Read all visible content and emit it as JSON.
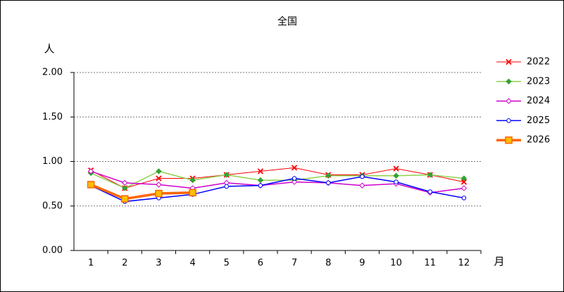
{
  "chart_data": {
    "type": "line",
    "title": "全国",
    "ylabel": "人",
    "xlabel": "月",
    "categories": [
      "1",
      "2",
      "3",
      "4",
      "5",
      "6",
      "7",
      "8",
      "9",
      "10",
      "11",
      "12"
    ],
    "ylim": [
      0,
      2
    ],
    "yticks": [
      {
        "value": 0,
        "label": "0.00"
      },
      {
        "value": 0.5,
        "label": "0.50"
      },
      {
        "value": 1,
        "label": "1.00"
      },
      {
        "value": 1.5,
        "label": "1.50"
      },
      {
        "value": 2,
        "label": "2.00"
      }
    ],
    "grid": true,
    "legend": "right",
    "series": [
      {
        "name": "2022",
        "color": "#ff0000",
        "marker": "x",
        "marker_fill": "#ff0000",
        "linewidth": 1,
        "values": [
          0.9,
          0.7,
          0.81,
          0.81,
          0.85,
          0.89,
          0.93,
          0.85,
          0.85,
          0.92,
          0.85,
          0.77
        ]
      },
      {
        "name": "2023",
        "color": "#8fd14f",
        "marker": "diamond",
        "marker_fill": "#33a333",
        "linewidth": 1.5,
        "values": [
          0.87,
          0.7,
          0.89,
          0.79,
          0.85,
          0.79,
          0.79,
          0.84,
          0.84,
          0.84,
          0.85,
          0.81
        ]
      },
      {
        "name": "2024",
        "color": "#cc00cc",
        "marker": "diamond",
        "marker_fill": "#ffffff",
        "linewidth": 1.5,
        "values": [
          0.89,
          0.76,
          0.74,
          0.7,
          0.76,
          0.73,
          0.77,
          0.76,
          0.73,
          0.75,
          0.65,
          0.7
        ]
      },
      {
        "name": "2025",
        "color": "#0000ff",
        "marker": "circle",
        "marker_fill": "#ffffff",
        "linewidth": 1.5,
        "values": [
          0.73,
          0.55,
          0.59,
          0.63,
          0.72,
          0.73,
          0.81,
          0.76,
          0.83,
          0.77,
          0.66,
          0.59
        ]
      },
      {
        "name": "2026",
        "color": "#ff6600",
        "marker": "square",
        "marker_fill": "#ffc000",
        "linewidth": 3.5,
        "values": [
          0.74,
          0.58,
          0.64,
          0.65,
          null,
          null,
          null,
          null,
          null,
          null,
          null,
          null
        ]
      }
    ]
  }
}
